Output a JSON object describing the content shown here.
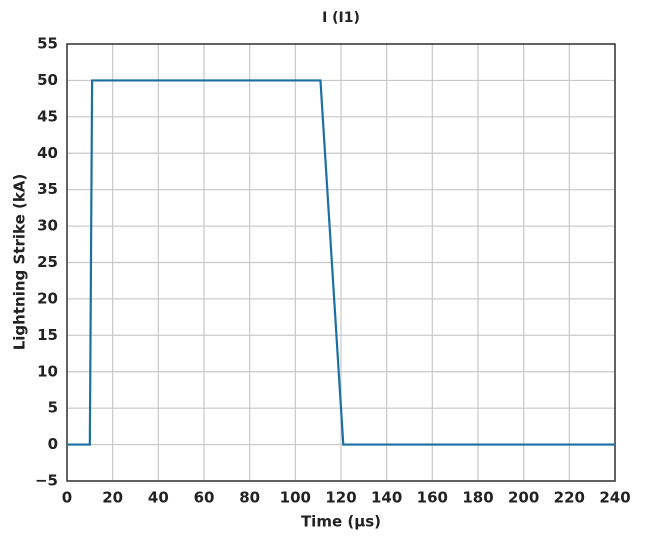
{
  "chart_data": {
    "type": "line",
    "title": "I (I1)",
    "x_label": "Time (μs)",
    "y_label": "Lightning Strike (kA)",
    "x": [
      0,
      10,
      11,
      111,
      121,
      240
    ],
    "series": [
      {
        "name": "I (I1)",
        "color": "#1b6fa3",
        "values": [
          0,
          0,
          50,
          50,
          0,
          0
        ]
      }
    ],
    "xlim": [
      0,
      240
    ],
    "xticks": [
      0,
      20,
      40,
      60,
      80,
      100,
      120,
      140,
      160,
      180,
      200,
      220,
      240
    ],
    "ylim": [
      -5,
      55
    ],
    "yticks": [
      {
        "value": -5,
        "label": "−5"
      },
      0,
      5,
      10,
      15,
      20,
      25,
      30,
      35,
      40,
      45,
      50,
      55
    ],
    "grid": true
  }
}
